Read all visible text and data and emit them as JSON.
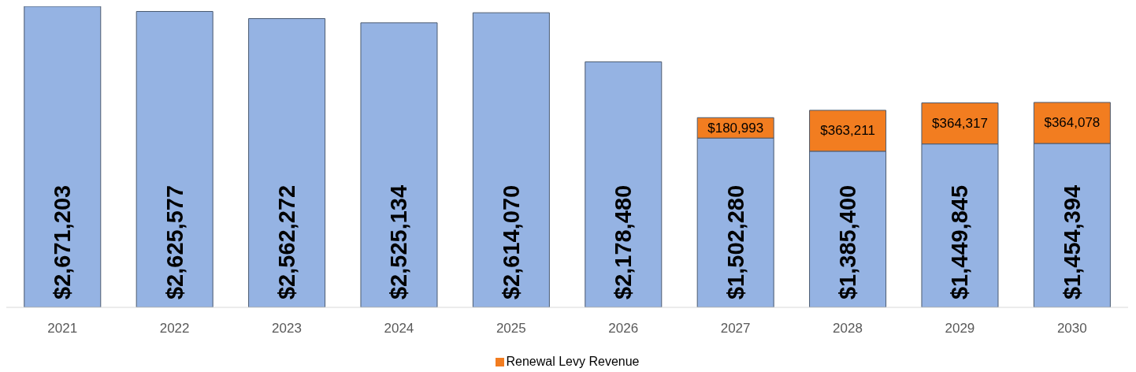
{
  "chart_data": {
    "type": "bar",
    "stacked": true,
    "categories": [
      "2021",
      "2022",
      "2023",
      "2024",
      "2025",
      "2026",
      "2027",
      "2028",
      "2029",
      "2030"
    ],
    "series": [
      {
        "color": "#95b3e3",
        "values": [
          2671203,
          2625577,
          2562272,
          2525134,
          2614070,
          2178480,
          1502280,
          1385400,
          1449845,
          1454394
        ],
        "value_labels": [
          "$2,671,203",
          "$2,625,577",
          "$2,562,272",
          "$2,525,134",
          "$2,614,070",
          "$2,178,480",
          "$1,502,280",
          "$1,385,400",
          "$1,449,845",
          "$1,454,394"
        ]
      },
      {
        "name": "Renewal Levy Revenue",
        "color": "#f27d20",
        "values": [
          null,
          null,
          null,
          null,
          null,
          null,
          180993,
          363211,
          364317,
          364078
        ],
        "value_labels": [
          null,
          null,
          null,
          null,
          null,
          null,
          "$180,993",
          "$363,211",
          "$364,317",
          "$364,078"
        ]
      }
    ],
    "tick_labels": "x",
    "legend": "bottom"
  }
}
